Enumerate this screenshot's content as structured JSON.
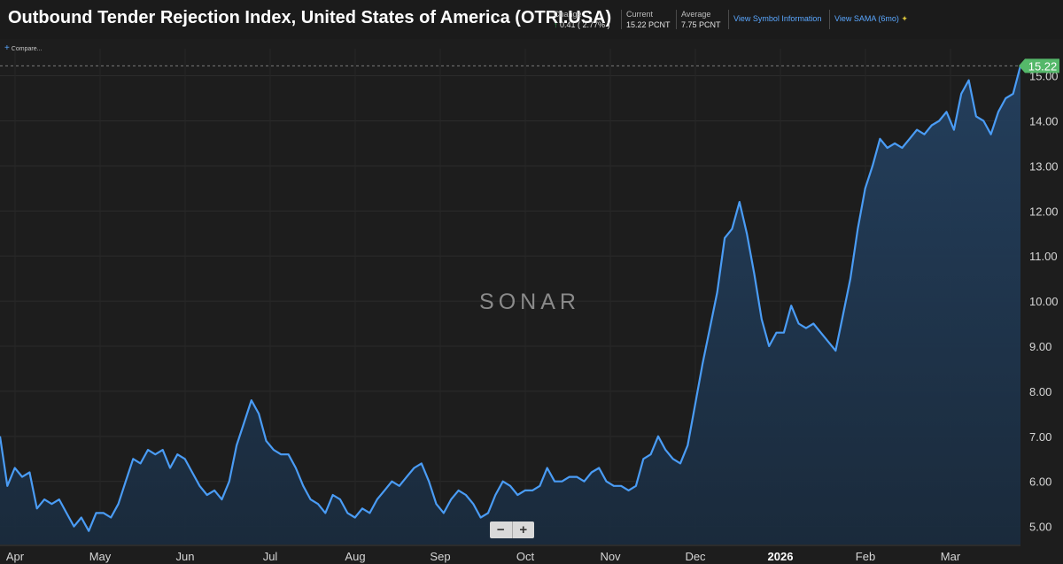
{
  "header": {
    "title": "Outbound Tender Rejection Index, United States of America (OTRI.USA)",
    "change_label": "Change",
    "change_value": "0.41 ( 2.77% )",
    "current_label": "Current",
    "current_value": "15.22 PCNT",
    "average_label": "Average",
    "average_value": "7.75 PCNT",
    "link_symbol": "View Symbol Information",
    "link_sama": "View SAMA (6mo)"
  },
  "compare_label": "Compare",
  "watermark": "SONAR",
  "zoom": {
    "minus": "−",
    "plus": "+"
  },
  "colors": {
    "line": "#4a9cf5",
    "positive": "#3fbf5f",
    "badge": "#55b86a"
  },
  "chart_data": {
    "type": "area",
    "title": "Outbound Tender Rejection Index, United States of America (OTRI.USA)",
    "xlabel": "",
    "ylabel": "",
    "ylim": [
      4.6,
      15.6
    ],
    "yticks": [
      "5.00",
      "6.00",
      "7.00",
      "8.00",
      "9.00",
      "10.00",
      "11.00",
      "12.00",
      "13.00",
      "14.00",
      "15.00"
    ],
    "xticks": [
      "Apr",
      "May",
      "Jun",
      "Jul",
      "Aug",
      "Sep",
      "Oct",
      "Nov",
      "Dec",
      "2026",
      "Feb",
      "Mar"
    ],
    "grid": true,
    "last_value_label": "15.22",
    "series": [
      {
        "values": [
          7.0,
          5.9,
          6.3,
          6.1,
          6.2,
          5.4,
          5.6,
          5.5,
          5.6,
          5.3,
          5.0,
          5.2,
          4.9,
          5.3,
          5.3,
          5.2,
          5.5,
          6.0,
          6.5,
          6.4,
          6.7,
          6.6,
          6.7,
          6.3,
          6.6,
          6.5,
          6.2,
          5.9,
          5.7,
          5.8,
          5.6,
          6.0,
          6.8,
          7.3,
          7.8,
          7.5,
          6.9,
          6.7,
          6.6,
          6.6,
          6.3,
          5.9,
          5.6,
          5.5,
          5.3,
          5.7,
          5.6,
          5.3,
          5.2,
          5.4,
          5.3,
          5.6,
          5.8,
          6.0,
          5.9,
          6.1,
          6.3,
          6.4,
          6.0,
          5.5,
          5.3,
          5.6,
          5.8,
          5.7,
          5.5,
          5.2,
          5.3,
          5.7,
          6.0,
          5.9,
          5.7,
          5.8,
          5.8,
          5.9,
          6.3,
          6.0,
          6.0,
          6.1,
          6.1,
          6.0,
          6.2,
          6.3,
          6.0,
          5.9,
          5.9,
          5.8,
          5.9,
          6.5,
          6.6,
          7.0,
          6.7,
          6.5,
          6.4,
          6.8,
          7.7,
          8.6,
          9.4,
          10.2,
          11.4,
          11.6,
          12.2,
          11.5,
          10.6,
          9.6,
          9.0,
          9.3,
          9.3,
          9.9,
          9.5,
          9.4,
          9.5,
          9.3,
          9.1,
          8.9,
          9.7,
          10.5,
          11.6,
          12.5,
          13.0,
          13.6,
          13.4,
          13.5,
          13.4,
          13.6,
          13.8,
          13.7,
          13.9,
          14.0,
          14.2,
          13.8,
          14.6,
          14.9,
          14.1,
          14.0,
          13.7,
          14.2,
          14.5,
          14.6,
          15.22
        ]
      }
    ]
  }
}
